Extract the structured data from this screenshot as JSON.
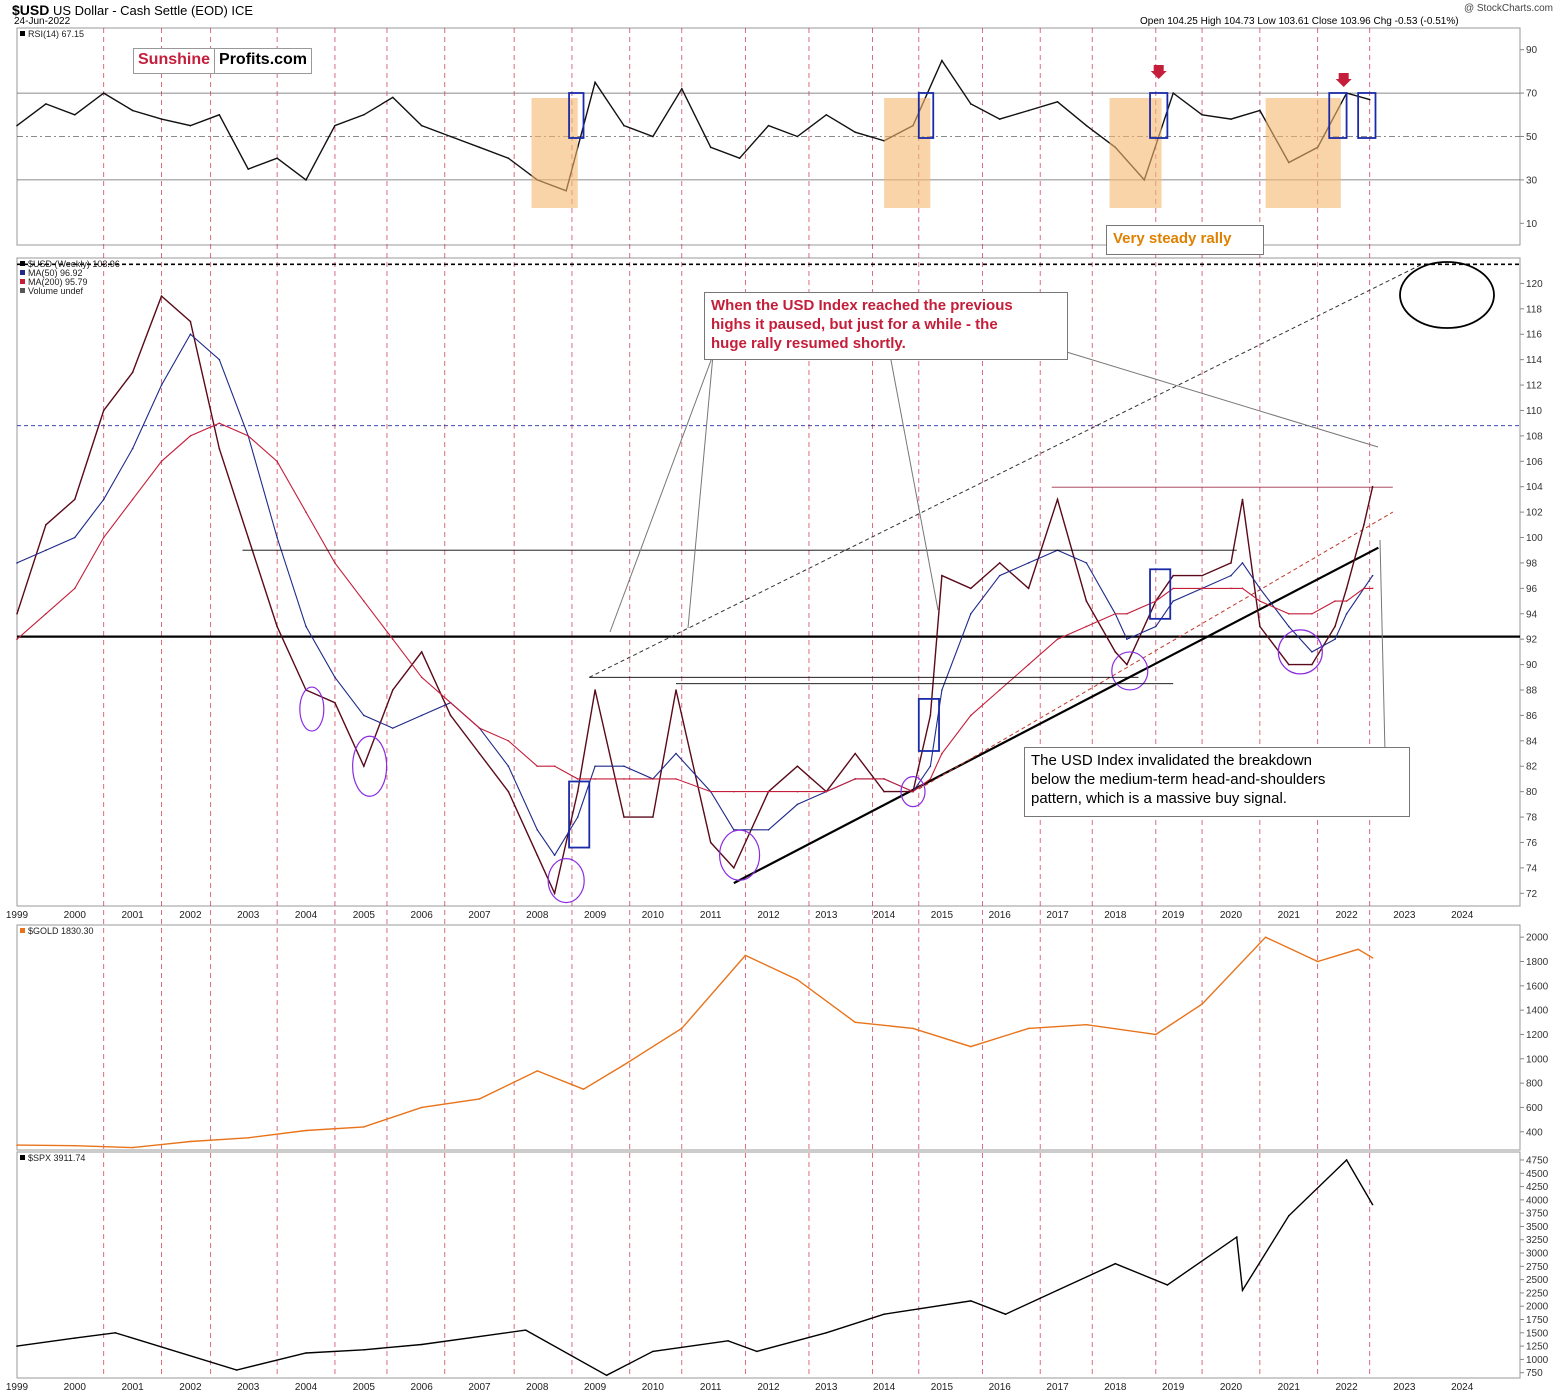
{
  "header": {
    "symbol": "$USD",
    "description": "US Dollar - Cash Settle (EOD) ICE",
    "date": "24-Jun-2022",
    "ohlc": "Open 104.25  High 104.73  Low 103.61  Close 103.96  Chg -0.53 (-0.51%)",
    "credit": "@ StockCharts.com"
  },
  "logo": {
    "part1": "Sunshine",
    "part2": "Profits.com"
  },
  "annotations": {
    "paused": "When the USD Index reached the previous\nhighs it paused, but just for a while - the\nhuge rally resumed shortly.",
    "invalidated": "The USD Index invalidated the breakdown\nbelow the medium-term head-and-shoulders\npattern, which is a massive buy signal.",
    "steady": "Very steady rally"
  },
  "chart_data": [
    {
      "type": "line",
      "panel": "rsi",
      "legend": [
        "RSI(14) 67.15"
      ],
      "ylim": [
        0,
        100
      ],
      "y_ticks": [
        10,
        30,
        50,
        70,
        90
      ],
      "reference_lines": [
        30,
        50,
        70
      ],
      "x": [
        1999.0,
        1999.5,
        2000.0,
        2000.5,
        2001.0,
        2001.5,
        2002.0,
        2002.5,
        2003.0,
        2003.5,
        2004.0,
        2004.5,
        2005.0,
        2005.5,
        2006.0,
        2006.5,
        2007.0,
        2007.5,
        2008.0,
        2008.5,
        2009.0,
        2009.5,
        2010.0,
        2010.5,
        2011.0,
        2011.5,
        2012.0,
        2012.5,
        2013.0,
        2013.5,
        2014.0,
        2014.5,
        2015.0,
        2015.5,
        2016.0,
        2016.5,
        2017.0,
        2017.5,
        2018.0,
        2018.5,
        2019.0,
        2019.5,
        2020.0,
        2020.5,
        2021.0,
        2021.5,
        2022.0,
        2022.4
      ],
      "values": [
        55,
        65,
        60,
        70,
        62,
        58,
        55,
        60,
        35,
        40,
        30,
        55,
        60,
        68,
        55,
        50,
        45,
        40,
        30,
        25,
        75,
        55,
        50,
        72,
        45,
        40,
        55,
        50,
        60,
        52,
        48,
        55,
        85,
        65,
        58,
        62,
        66,
        55,
        45,
        30,
        70,
        60,
        58,
        62,
        38,
        45,
        70,
        67
      ]
    },
    {
      "type": "line",
      "panel": "usd",
      "legend": [
        "$USD (Weekly) 103.96",
        "MA(50) 96.92",
        "MA(200) 95.79",
        "Volume undef"
      ],
      "ylim": [
        71,
        122
      ],
      "y_ticks": [
        72,
        74,
        76,
        78,
        80,
        82,
        84,
        86,
        88,
        90,
        92,
        94,
        96,
        98,
        100,
        102,
        104,
        106,
        108,
        110,
        112,
        114,
        116,
        118,
        120
      ],
      "x_ticks": [
        "1999",
        "2000",
        "2001",
        "2002",
        "2003",
        "2004",
        "2005",
        "2006",
        "2007",
        "2008",
        "2009",
        "2010",
        "2011",
        "2012",
        "2013",
        "2014",
        "2015",
        "2016",
        "2017",
        "2018",
        "2019",
        "2020",
        "2021",
        "2022",
        "2023",
        "2024"
      ],
      "x": [
        1999.0,
        1999.5,
        2000.0,
        2000.5,
        2001.0,
        2001.5,
        2002.0,
        2002.5,
        2003.0,
        2003.5,
        2004.0,
        2004.5,
        2005.0,
        2005.5,
        2006.0,
        2006.5,
        2007.0,
        2007.5,
        2008.0,
        2008.3,
        2008.7,
        2009.0,
        2009.5,
        2010.0,
        2010.4,
        2011.0,
        2011.4,
        2012.0,
        2012.5,
        2013.0,
        2013.5,
        2014.0,
        2014.5,
        2014.8,
        2015.0,
        2015.5,
        2016.0,
        2016.5,
        2017.0,
        2017.5,
        2018.0,
        2018.2,
        2018.7,
        2019.0,
        2019.5,
        2020.0,
        2020.2,
        2020.5,
        2021.0,
        2021.4,
        2021.8,
        2022.0,
        2022.3,
        2022.45
      ],
      "series": [
        {
          "name": "$USD (Weekly) 103.96",
          "values": [
            94,
            101,
            103,
            110,
            113,
            119,
            117,
            107,
            100,
            93,
            88,
            87,
            82,
            88,
            91,
            86,
            83,
            80,
            75,
            72,
            80,
            88,
            78,
            78,
            88,
            76,
            74,
            80,
            82,
            80,
            83,
            80,
            80,
            86,
            97,
            96,
            98,
            96,
            103,
            95,
            91,
            90,
            95,
            97,
            97,
            98,
            103,
            93,
            90,
            90,
            93,
            96,
            101,
            104
          ]
        },
        {
          "name": "MA(50) 96.92",
          "values": [
            98,
            99,
            100,
            103,
            107,
            112,
            116,
            114,
            108,
            100,
            93,
            89,
            86,
            85,
            86,
            87,
            85,
            82,
            77,
            75,
            78,
            82,
            82,
            81,
            83,
            80,
            77,
            77,
            79,
            80,
            81,
            81,
            80,
            82,
            88,
            94,
            97,
            98,
            99,
            98,
            94,
            92,
            93,
            95,
            96,
            97,
            98,
            96,
            93,
            91,
            92,
            94,
            96,
            97
          ]
        },
        {
          "name": "MA(200) 95.79",
          "values": [
            92,
            94,
            96,
            100,
            103,
            106,
            108,
            109,
            108,
            106,
            102,
            98,
            95,
            92,
            89,
            87,
            85,
            84,
            82,
            82,
            81,
            81,
            81,
            81,
            81,
            80,
            80,
            80,
            80,
            80,
            81,
            81,
            80,
            81,
            83,
            86,
            88,
            90,
            92,
            93,
            94,
            94,
            95,
            96,
            96,
            96,
            96,
            95,
            94,
            94,
            95,
            95,
            96,
            96
          ]
        }
      ],
      "horizontal_levels": [
        92.2,
        103.96,
        108.8,
        121.5
      ],
      "support_line": {
        "x": [
          2011.4,
          2022.55
        ],
        "y": [
          72.8,
          99.2
        ]
      },
      "resistance_line": {
        "x": [
          2008.9,
          2023.3
        ],
        "y": [
          89,
          121.5
        ]
      }
    },
    {
      "type": "line",
      "panel": "gold",
      "legend": [
        "$GOLD 1830.30"
      ],
      "ylim": [
        250,
        2100
      ],
      "y_ticks": [
        400,
        600,
        800,
        1000,
        1200,
        1400,
        1600,
        1800,
        2000
      ],
      "x": [
        1999.0,
        2000.0,
        2001.0,
        2002.0,
        2003.0,
        2004.0,
        2005.0,
        2006.0,
        2007.0,
        2008.0,
        2008.8,
        2009.5,
        2010.5,
        2011.6,
        2012.5,
        2013.5,
        2014.5,
        2015.5,
        2016.5,
        2017.5,
        2018.7,
        2019.5,
        2020.6,
        2021.5,
        2022.2,
        2022.45
      ],
      "values": [
        290,
        285,
        270,
        320,
        350,
        410,
        440,
        600,
        670,
        900,
        750,
        950,
        1250,
        1850,
        1650,
        1300,
        1250,
        1100,
        1250,
        1280,
        1200,
        1450,
        2000,
        1800,
        1900,
        1830
      ]
    },
    {
      "type": "line",
      "panel": "spx",
      "legend": [
        "$SPX 3911.74"
      ],
      "ylim": [
        650,
        4900
      ],
      "y_ticks": [
        750,
        1000,
        1250,
        1500,
        1750,
        2000,
        2250,
        2500,
        2750,
        3000,
        3250,
        3500,
        3750,
        4000,
        4250,
        4500,
        4750
      ],
      "x": [
        1999.0,
        2000.0,
        2000.7,
        2002.8,
        2004.0,
        2005.0,
        2006.0,
        2007.8,
        2009.2,
        2010.0,
        2011.3,
        2011.8,
        2013.0,
        2014.0,
        2015.5,
        2016.1,
        2017.0,
        2018.0,
        2018.9,
        2020.1,
        2020.2,
        2021.0,
        2022.0,
        2022.45
      ],
      "values": [
        1250,
        1400,
        1500,
        800,
        1120,
        1180,
        1280,
        1550,
        700,
        1150,
        1350,
        1150,
        1500,
        1850,
        2100,
        1850,
        2300,
        2800,
        2400,
        3300,
        2300,
        3700,
        4750,
        3911.74
      ]
    }
  ]
}
